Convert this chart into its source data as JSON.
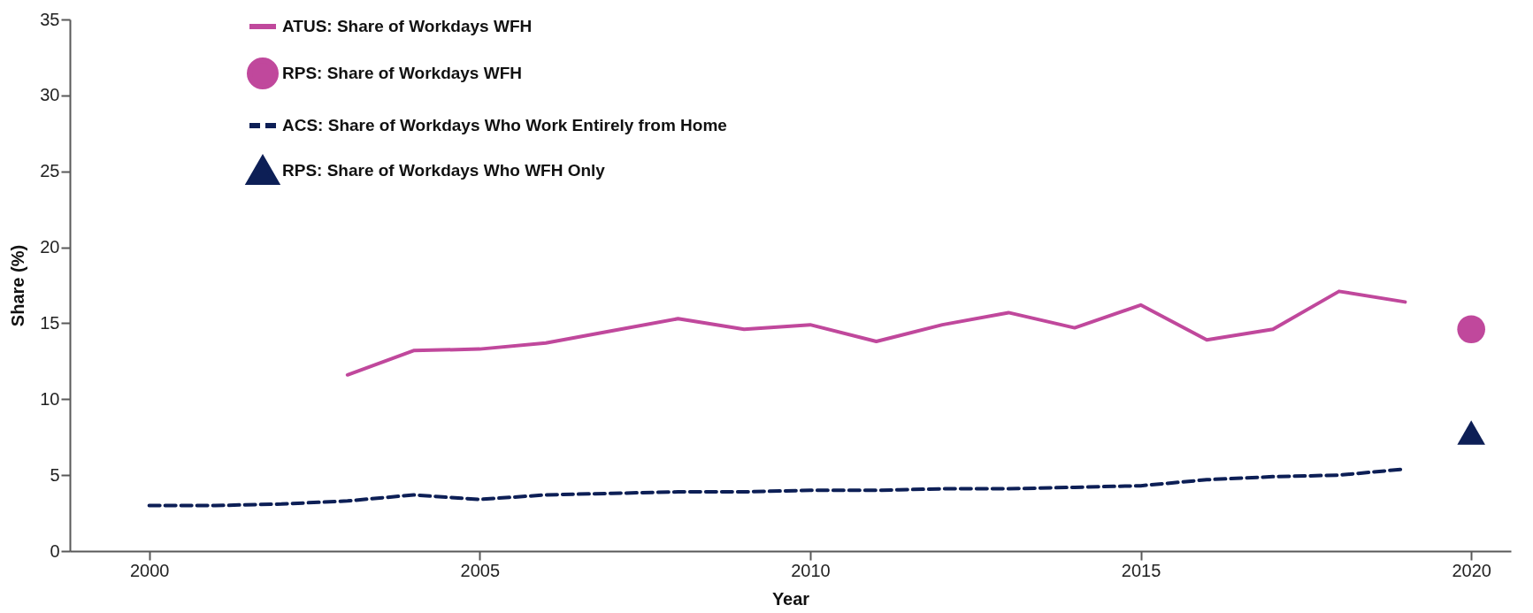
{
  "chart_data": {
    "type": "line",
    "xlabel": "Year",
    "ylabel": "Share (%)",
    "xlim": [
      1998.8,
      2020.6
    ],
    "xticks": [
      2000,
      2005,
      2010,
      2015,
      2020
    ],
    "ylim": [
      0,
      35
    ],
    "yticks": [
      0,
      5,
      10,
      15,
      20,
      25,
      30,
      35
    ],
    "grid": false,
    "legend": "top left",
    "series": [
      {
        "name": "ATUS:  Share of Workdays WFH",
        "color": "#c0489c",
        "line_style": "solid",
        "x": [
          2003,
          2004,
          2005,
          2006,
          2007,
          2008,
          2009,
          2010,
          2011,
          2012,
          2013,
          2014,
          2015,
          2016,
          2017,
          2018,
          2019
        ],
        "values": [
          11.6,
          13.2,
          13.3,
          13.7,
          14.5,
          15.3,
          14.6,
          14.9,
          13.8,
          14.9,
          15.7,
          14.7,
          16.2,
          13.9,
          14.6,
          17.1,
          16.4
        ]
      },
      {
        "name": "RPS:    Share of Workdays WFH",
        "type": "scatter",
        "color": "#c0489c",
        "marker": "circle",
        "x": [
          2020
        ],
        "values": [
          14.6
        ]
      },
      {
        "name": "ACS:    Share of Workdays Who Work Entirely from Home",
        "color": "#0d1f56",
        "line_style": "dashed",
        "x": [
          2000,
          2001,
          2002,
          2003,
          2004,
          2005,
          2006,
          2007,
          2008,
          2009,
          2010,
          2011,
          2012,
          2013,
          2014,
          2015,
          2016,
          2017,
          2018,
          2019
        ],
        "values": [
          3.0,
          3.0,
          3.1,
          3.3,
          3.7,
          3.4,
          3.7,
          3.8,
          3.9,
          3.9,
          4.0,
          4.0,
          4.1,
          4.1,
          4.2,
          4.3,
          4.7,
          4.9,
          5.0,
          5.4
        ]
      },
      {
        "name": "RPS:    Share of Workdays Who WFH Only",
        "type": "scatter",
        "color": "#0d1f56",
        "marker": "triangle",
        "x": [
          2020
        ],
        "values": [
          7.8
        ]
      }
    ]
  }
}
